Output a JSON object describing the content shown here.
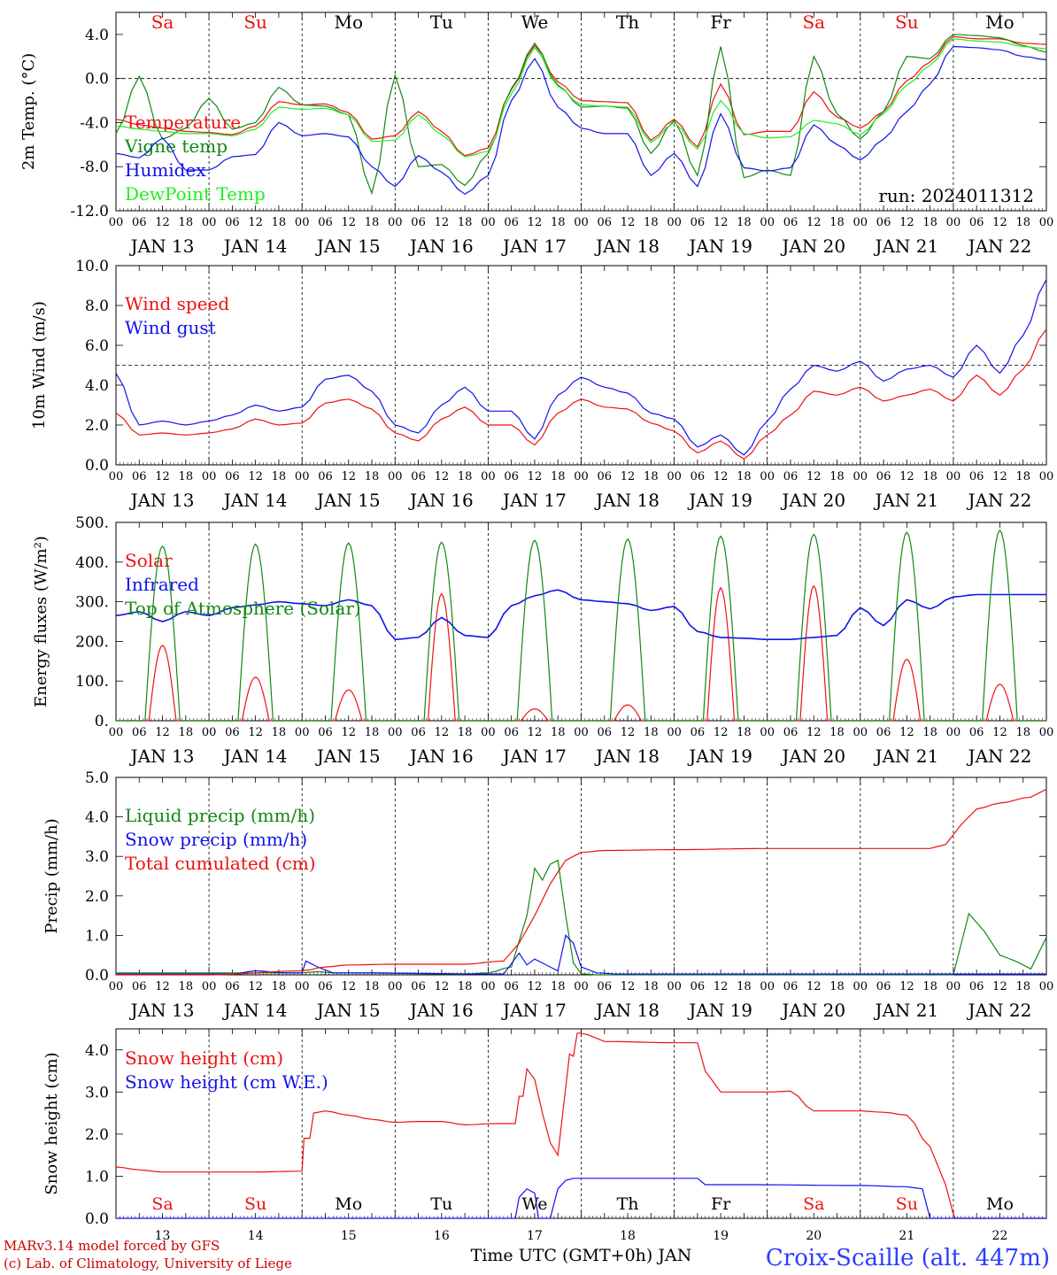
{
  "axis": {
    "hours": [
      "00",
      "06",
      "12",
      "18"
    ],
    "date_labels": [
      "JAN 13",
      "JAN 14",
      "JAN 15",
      "JAN 16",
      "JAN 17",
      "JAN 18",
      "JAN 19",
      "JAN 20",
      "JAN 21",
      "JAN 22"
    ],
    "bottom_day_numbers": [
      "13",
      "14",
      "15",
      "16",
      "17",
      "18",
      "19",
      "20",
      "21",
      "22"
    ],
    "weekdays": [
      "Sa",
      "Su",
      "Mo",
      "Tu",
      "We",
      "Th",
      "Fr",
      "Sa",
      "Su",
      "Mo"
    ],
    "weekend": [
      true,
      true,
      false,
      false,
      false,
      false,
      false,
      true,
      true,
      false
    ],
    "time_label": "Time UTC (GMT+0h) JAN"
  },
  "footer": {
    "credit_line1": "MARv3.14 model forced by GFS",
    "credit_line2": "(c) Lab. of Climatology, University of Liege",
    "station": "Croix-Scaille (alt. 447m)"
  },
  "colors": {
    "red": "#ee1111",
    "green": "#118811",
    "blue": "#1111ee",
    "lightgreen": "#22ee22",
    "weekend": "#ee1111",
    "weekday": "#000000"
  },
  "chart_data": [
    {
      "type": "line",
      "ylabel": "2m Temp. (°C)",
      "ylim": [
        -12,
        6
      ],
      "yticks": [
        "4.0",
        "0.0",
        "-4.0",
        "-8.0",
        "-12.0"
      ],
      "ytick_values": [
        4,
        0,
        -4,
        -8,
        -12
      ],
      "ref_line": 0,
      "annotation": "run: 2024011312",
      "x_hours": [
        0,
        6,
        12,
        18,
        24,
        30,
        36,
        42,
        48,
        54,
        60,
        66,
        72,
        78,
        84,
        90,
        96,
        102,
        108,
        114,
        120,
        126,
        132,
        138,
        144,
        150,
        156,
        162,
        168,
        174,
        180,
        186,
        192,
        198,
        204,
        210,
        216,
        222,
        228,
        234,
        240
      ],
      "series": [
        {
          "name": "Temperature",
          "color": "red",
          "values": [
            -3.7,
            -4.2,
            -4.5,
            -4.8,
            -4.9,
            -5.1,
            -4.3,
            -2.1,
            -2.4,
            -2.3,
            -3.1,
            -5.5,
            -5.2,
            -3.0,
            -4.8,
            -7.0,
            -6.3,
            -1.0,
            3.0,
            -0.3,
            -2.0,
            -2.1,
            -2.2,
            -5.6,
            -3.7,
            -6.2,
            -0.5,
            -5.1,
            -4.8,
            -4.8,
            -1.2,
            -3.5,
            -4.5,
            -3.0,
            -0.2,
            1.5,
            3.8,
            3.6,
            3.6,
            3.2,
            3.1
          ]
        },
        {
          "name": "Vigne temp",
          "color": "green",
          "values": [
            -5.0,
            0.2,
            -5.5,
            -4.5,
            -1.8,
            -4.6,
            -4.0,
            -0.8,
            -2.4,
            -2.5,
            -3.3,
            -10.4,
            0.3,
            -8.0,
            -7.8,
            -9.7,
            -6.8,
            -0.9,
            3.2,
            -0.6,
            -2.6,
            -2.5,
            -2.7,
            -6.8,
            -3.8,
            -8.8,
            2.9,
            -9.0,
            -8.3,
            -8.8,
            2.0,
            -3.2,
            -5.5,
            -3.0,
            2.0,
            1.8,
            4.0,
            3.9,
            3.7,
            3.0,
            2.4
          ]
        },
        {
          "name": "Humidex",
          "color": "blue",
          "values": [
            -6.8,
            -7.2,
            -5.4,
            -8.3,
            -8.3,
            -7.1,
            -6.9,
            -4.0,
            -5.2,
            -5.0,
            -5.3,
            -8.0,
            -9.8,
            -7.0,
            -8.5,
            -10.5,
            -8.8,
            -2.0,
            1.8,
            -2.6,
            -4.5,
            -5.0,
            -5.0,
            -8.8,
            -6.8,
            -9.8,
            -3.2,
            -8.1,
            -8.4,
            -8.1,
            -4.2,
            -6.0,
            -7.4,
            -5.5,
            -3.0,
            -0.5,
            2.9,
            2.8,
            2.6,
            2.0,
            1.7
          ]
        },
        {
          "name": "DewPoint Temp",
          "color": "lightgreen",
          "values": [
            -4.3,
            -4.6,
            -4.8,
            -5.0,
            -5.0,
            -5.2,
            -4.6,
            -2.6,
            -2.8,
            -2.7,
            -3.3,
            -5.7,
            -5.6,
            -3.3,
            -5.1,
            -7.1,
            -6.6,
            -1.4,
            2.8,
            -0.7,
            -2.4,
            -2.5,
            -2.6,
            -5.8,
            -4.0,
            -6.4,
            -2.0,
            -5.0,
            -5.4,
            -5.3,
            -3.8,
            -4.1,
            -5.1,
            -3.2,
            -0.6,
            1.2,
            3.6,
            3.4,
            3.3,
            2.9,
            2.7
          ]
        }
      ]
    },
    {
      "type": "line",
      "ylabel": "10m Wind (m/s)",
      "ylim": [
        0,
        10
      ],
      "yticks": [
        "10.0",
        "8.0",
        "6.0",
        "4.0",
        "2.0",
        "0.0"
      ],
      "ytick_values": [
        10,
        8,
        6,
        4,
        2,
        0
      ],
      "ref_line": 5,
      "x_hours": [
        0,
        6,
        12,
        18,
        24,
        30,
        36,
        42,
        48,
        54,
        60,
        66,
        72,
        78,
        84,
        90,
        96,
        102,
        108,
        114,
        120,
        126,
        132,
        138,
        144,
        150,
        156,
        162,
        168,
        174,
        180,
        186,
        192,
        198,
        204,
        210,
        216,
        222,
        228,
        234,
        240
      ],
      "series": [
        {
          "name": "Wind speed",
          "color": "red",
          "values": [
            2.6,
            1.5,
            1.6,
            1.5,
            1.6,
            1.8,
            2.3,
            2.0,
            2.1,
            3.1,
            3.3,
            2.8,
            1.6,
            1.2,
            2.3,
            2.9,
            2.0,
            2.0,
            1.0,
            2.6,
            3.3,
            2.9,
            2.8,
            2.1,
            1.7,
            0.6,
            1.2,
            0.3,
            1.5,
            2.5,
            3.7,
            3.5,
            3.9,
            3.2,
            3.5,
            3.8,
            3.2,
            4.5,
            3.5,
            4.8,
            6.8
          ]
        },
        {
          "name": "Wind gust",
          "color": "blue",
          "values": [
            4.6,
            2.0,
            2.2,
            2.0,
            2.2,
            2.5,
            3.0,
            2.7,
            2.9,
            4.3,
            4.5,
            3.7,
            2.0,
            1.6,
            3.0,
            3.9,
            2.7,
            2.7,
            1.3,
            3.5,
            4.4,
            3.9,
            3.6,
            2.6,
            2.3,
            0.9,
            1.5,
            0.5,
            2.2,
            3.8,
            5.0,
            4.7,
            5.2,
            4.2,
            4.8,
            5.0,
            4.4,
            6.0,
            4.6,
            6.5,
            9.3
          ]
        }
      ]
    },
    {
      "type": "line",
      "ylabel": "Energy fluxes (W/m²)",
      "ylim": [
        0,
        500
      ],
      "yticks": [
        "500.",
        "400.",
        "300.",
        "200.",
        "100.",
        "0."
      ],
      "ytick_values": [
        500,
        400,
        300,
        200,
        100,
        0
      ],
      "series": [
        {
          "name": "Solar",
          "color": "red",
          "peaks": [
            190,
            110,
            78,
            320,
            30,
            40,
            335,
            340,
            155,
            92
          ]
        },
        {
          "name": "Infrared",
          "color": "blue",
          "x_hours": [
            0,
            6,
            12,
            18,
            24,
            30,
            36,
            42,
            48,
            54,
            60,
            66,
            72,
            78,
            84,
            90,
            96,
            102,
            108,
            114,
            120,
            126,
            132,
            138,
            144,
            150,
            156,
            162,
            168,
            174,
            180,
            186,
            192,
            198,
            204,
            210,
            216,
            222,
            228,
            234,
            240
          ],
          "values": [
            265,
            275,
            250,
            275,
            265,
            285,
            292,
            300,
            295,
            290,
            305,
            290,
            205,
            210,
            260,
            215,
            210,
            290,
            315,
            330,
            305,
            300,
            295,
            278,
            288,
            225,
            210,
            208,
            205,
            205,
            210,
            215,
            285,
            240,
            305,
            282,
            312,
            318,
            318,
            318,
            318
          ]
        },
        {
          "name": "Top of Atmosphere (Solar)",
          "color": "green",
          "peaks": [
            440,
            445,
            448,
            450,
            455,
            458,
            465,
            470,
            475,
            480
          ]
        }
      ]
    },
    {
      "type": "line",
      "ylabel": "Precip (mm/h)",
      "ylim": [
        0,
        5
      ],
      "yticks": [
        "5.0",
        "4.0",
        "3.0",
        "2.0",
        "1.0",
        "0.0"
      ],
      "ytick_values": [
        5,
        4,
        3,
        2,
        1,
        0
      ],
      "series": [
        {
          "name": "Liquid precip (mm/h)",
          "color": "green",
          "x_hours": [
            0,
            24,
            48,
            52,
            56,
            60,
            90,
            96,
            102,
            106,
            108,
            110,
            112,
            114,
            116,
            118,
            120,
            124,
            216,
            220,
            224,
            228,
            232,
            236,
            240
          ],
          "values": [
            0.05,
            0.05,
            0.05,
            0.08,
            0.05,
            0.05,
            0.02,
            0.05,
            0.2,
            1.5,
            2.7,
            2.4,
            2.8,
            2.9,
            1.5,
            0.3,
            0.03,
            0.0,
            0.0,
            1.55,
            1.1,
            0.5,
            0.35,
            0.15,
            0.95
          ]
        },
        {
          "name": "Snow precip (mm/h)",
          "color": "blue",
          "x_hours": [
            0,
            30,
            36,
            44,
            48,
            49,
            52,
            56,
            60,
            100,
            104,
            106,
            108,
            110,
            114,
            116,
            118,
            120,
            124,
            130,
            216,
            240
          ],
          "values": [
            0.02,
            0.02,
            0.1,
            0.05,
            0.05,
            0.35,
            0.2,
            0.05,
            0.05,
            0.02,
            0.55,
            0.25,
            0.4,
            0.3,
            0.1,
            1.0,
            0.8,
            0.2,
            0.05,
            0.02,
            0.02,
            0.02
          ]
        },
        {
          "name": "Total cumulated (cm)",
          "color": "red",
          "x_hours": [
            0,
            24,
            48,
            54,
            60,
            72,
            90,
            100,
            104,
            108,
            112,
            116,
            120,
            126,
            144,
            168,
            192,
            210,
            214,
            218,
            222,
            228,
            236,
            240
          ],
          "values": [
            0.0,
            0.0,
            0.1,
            0.2,
            0.25,
            0.27,
            0.27,
            0.35,
            0.8,
            1.5,
            2.3,
            2.9,
            3.1,
            3.15,
            3.17,
            3.2,
            3.2,
            3.2,
            3.3,
            3.8,
            4.2,
            4.35,
            4.5,
            4.7
          ]
        }
      ]
    },
    {
      "type": "line",
      "ylabel": "Snow height (cm)",
      "ylim": [
        0,
        4.5
      ],
      "yticks": [
        "4.0",
        "3.0",
        "2.0",
        "1.0",
        "0.0"
      ],
      "ytick_values": [
        4,
        3,
        2,
        1,
        0
      ],
      "series": [
        {
          "name": "Snow height (cm)",
          "color": "red",
          "x_hours": [
            0,
            6,
            12,
            24,
            36,
            48,
            48.5,
            50,
            51,
            54,
            60,
            66,
            72,
            78,
            84,
            90,
            98,
            103,
            104,
            105,
            106,
            108,
            110,
            112,
            114,
            116,
            117,
            118,
            119,
            120,
            122,
            126,
            144,
            150,
            152,
            156,
            162,
            168,
            174,
            180,
            192,
            198,
            204,
            210,
            214,
            216,
            216.5,
            240
          ],
          "values": [
            1.22,
            1.15,
            1.1,
            1.1,
            1.1,
            1.12,
            1.9,
            1.9,
            2.5,
            2.55,
            2.45,
            2.35,
            2.28,
            2.3,
            2.3,
            2.22,
            2.25,
            2.25,
            2.9,
            2.9,
            3.55,
            3.3,
            2.5,
            1.8,
            1.5,
            3.1,
            3.9,
            3.85,
            4.4,
            4.4,
            4.35,
            4.2,
            4.17,
            4.17,
            3.5,
            3.0,
            3.0,
            3.0,
            3.02,
            2.55,
            2.55,
            2.52,
            2.45,
            1.7,
            0.8,
            0.1,
            0.0,
            0.0
          ]
        },
        {
          "name": "Snow height (cm W.E.)",
          "color": "blue",
          "x_hours": [
            0,
            103,
            104,
            106,
            108,
            109,
            110,
            112,
            114,
            116,
            118,
            120,
            126,
            150,
            152,
            156,
            162,
            192,
            204,
            208,
            210,
            216,
            240
          ],
          "values": [
            0.0,
            0.0,
            0.5,
            0.7,
            0.6,
            0.0,
            0.0,
            0.0,
            0.7,
            0.9,
            0.95,
            0.95,
            0.95,
            0.95,
            0.8,
            0.8,
            0.8,
            0.78,
            0.75,
            0.7,
            0.0,
            0.0,
            0.0
          ]
        }
      ]
    }
  ]
}
